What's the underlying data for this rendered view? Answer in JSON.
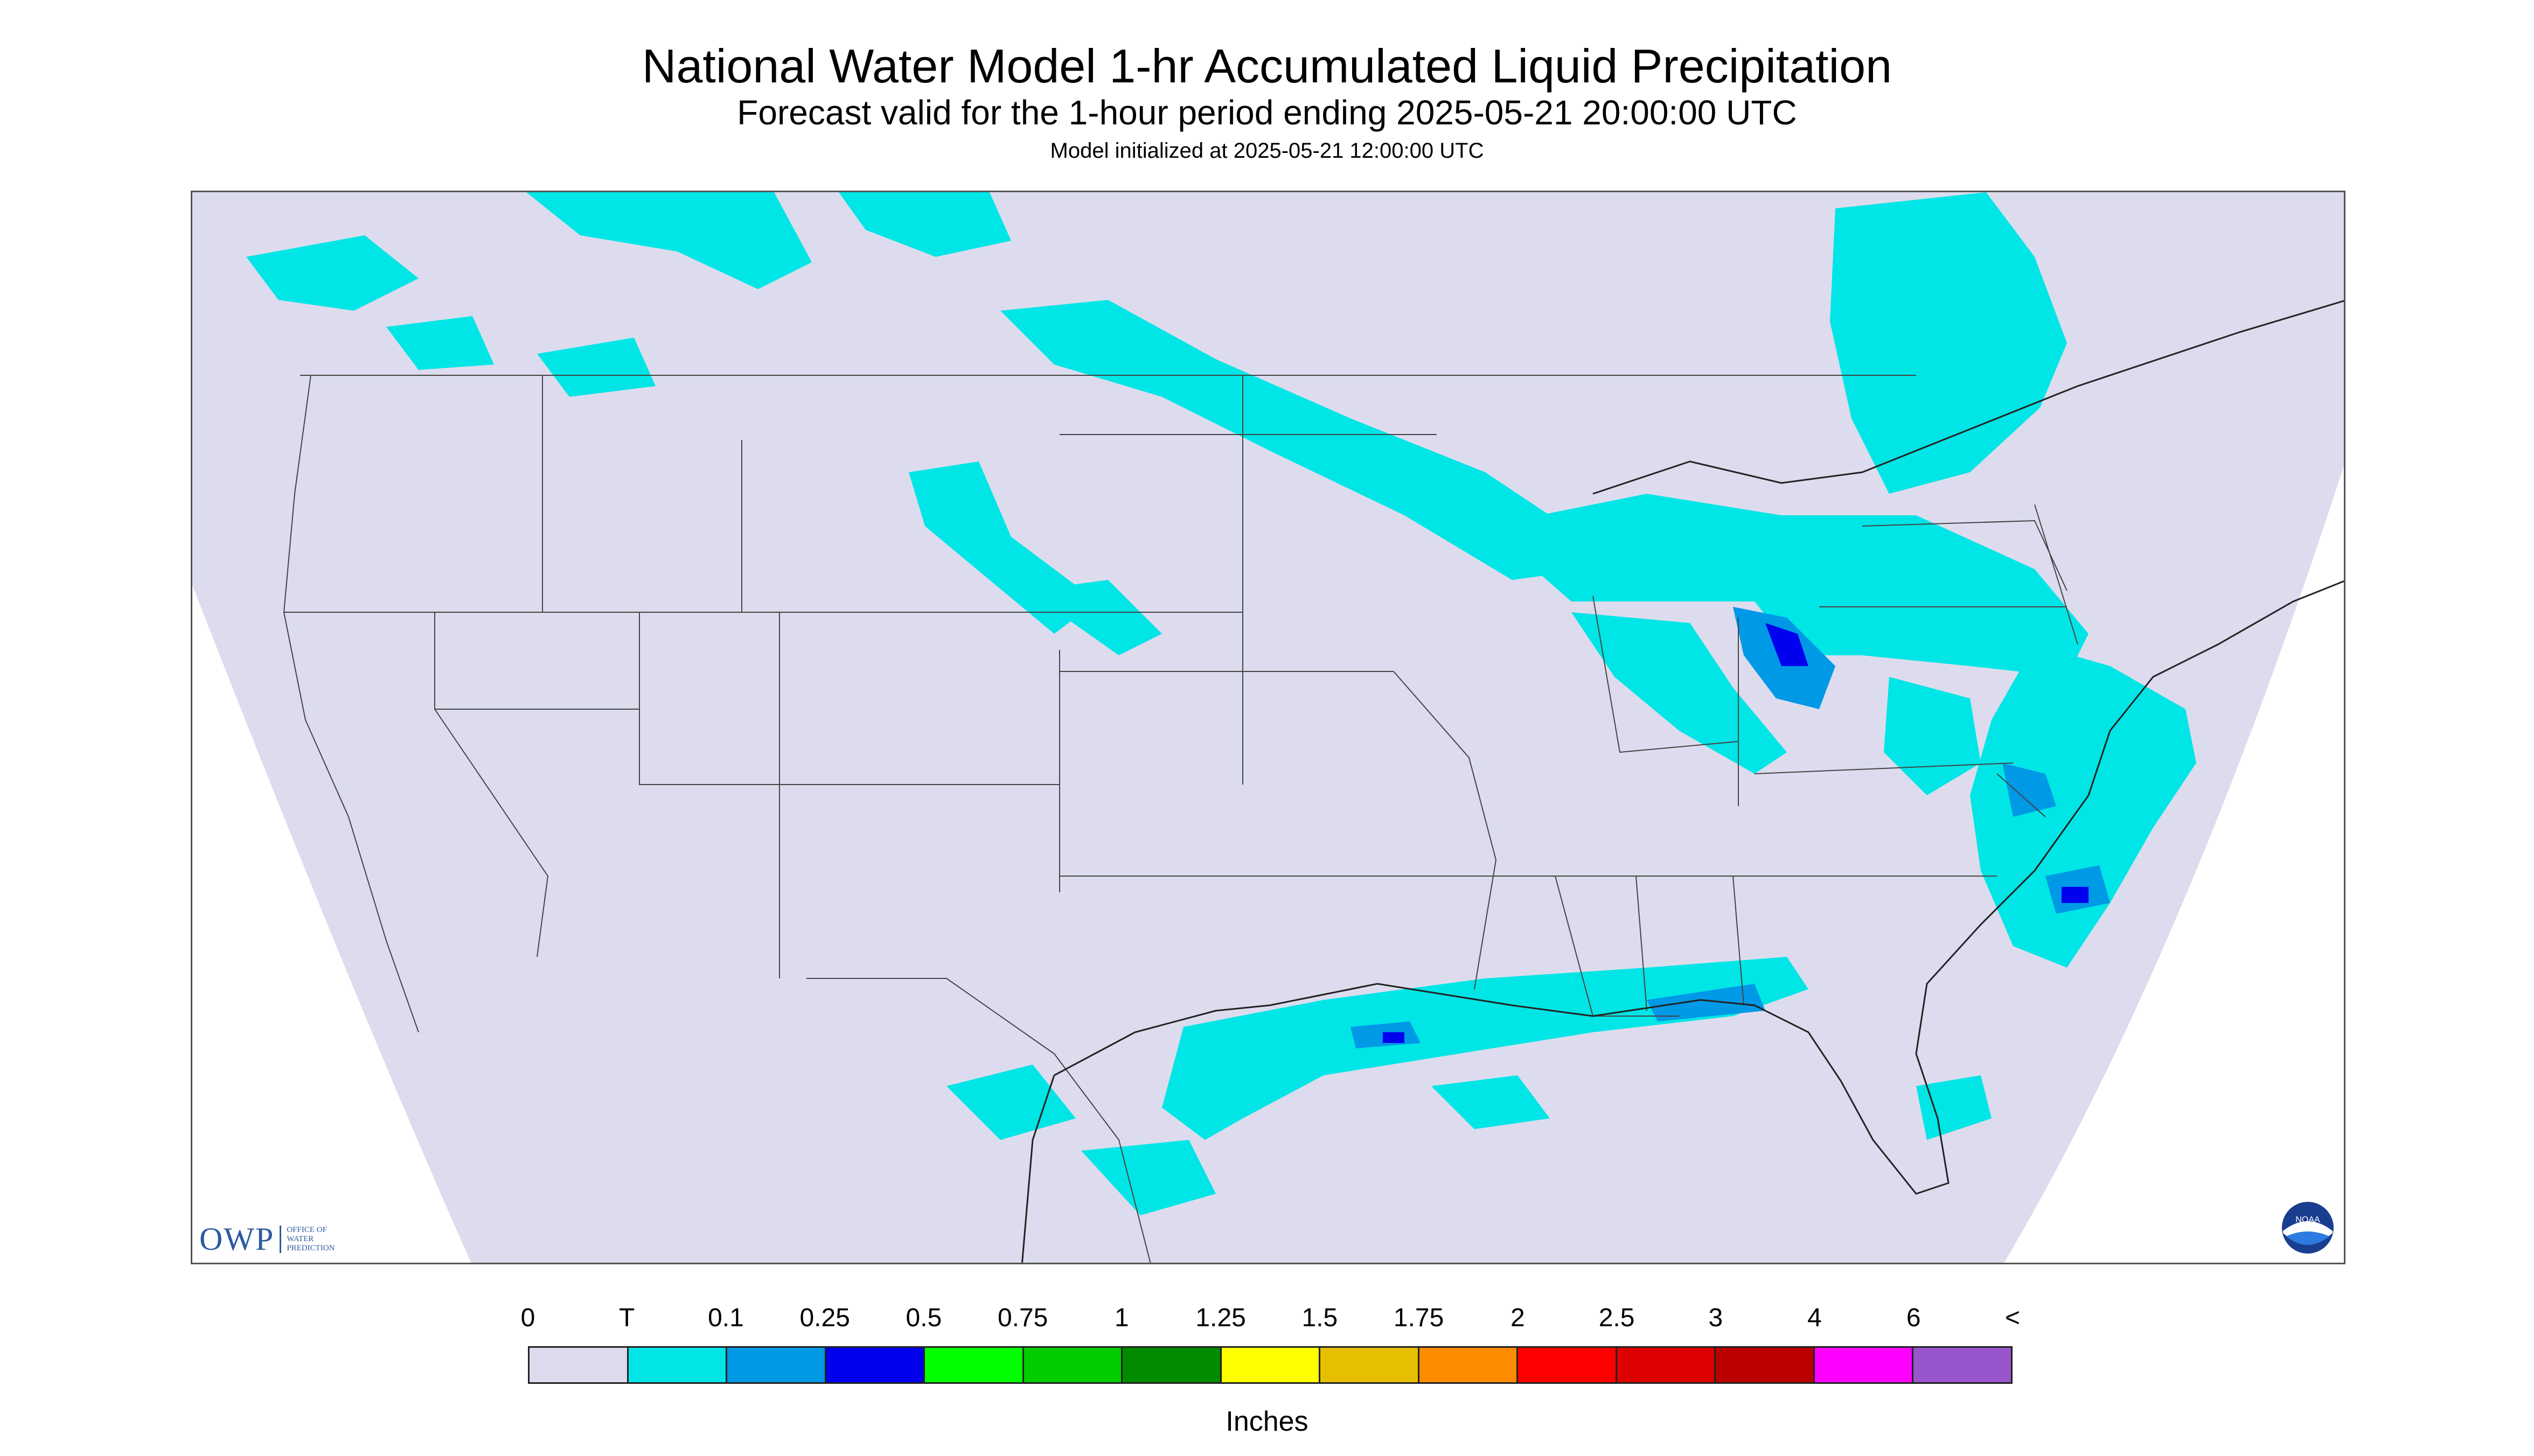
{
  "header": {
    "title": "National Water Model 1-hr Accumulated Liquid Precipitation",
    "subtitle": "Forecast valid for the 1-hour period ending 2025-05-21 20:00:00 UTC",
    "init": "Model initialized at 2025-05-21 12:00:00 UTC"
  },
  "map": {
    "background_color": "#dcdcee",
    "boundary_color": "#444444",
    "icons": [
      "owp-logo",
      "noaa-logo"
    ]
  },
  "logos": {
    "owp_mark": "OWP",
    "owp_text": [
      "OFFICE OF",
      "WATER",
      "PREDICTION"
    ],
    "noaa_text": "NOAA"
  },
  "legend": {
    "labels": [
      "0",
      "T",
      "0.1",
      "0.25",
      "0.5",
      "0.75",
      "1",
      "1.25",
      "1.5",
      "1.75",
      "2",
      "2.5",
      "3",
      "4",
      "6",
      "<"
    ],
    "colors": [
      "#dcdcee",
      "#00e5e5",
      "#0099e6",
      "#0000ee",
      "#00ff00",
      "#00cc00",
      "#008b00",
      "#ffff00",
      "#e6c000",
      "#ff8c00",
      "#ff0000",
      "#dd0000",
      "#bb0000",
      "#ff00ff",
      "#9955cc"
    ],
    "units": "Inches"
  }
}
